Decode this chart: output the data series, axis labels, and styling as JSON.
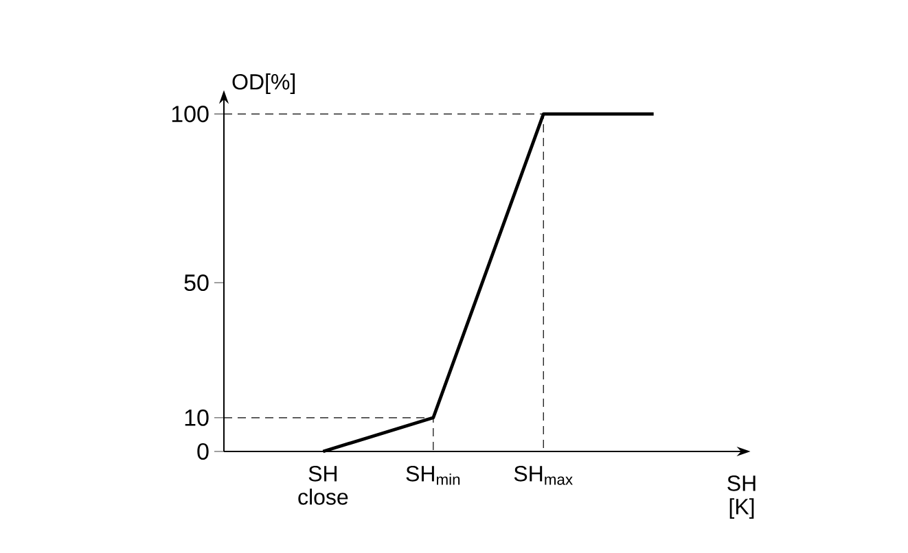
{
  "chart_data": {
    "type": "line",
    "ylabel": "OD[%]",
    "xlabel": "SH [K]",
    "categories": [
      "SH close",
      "SH$_{min}$",
      "SH$_{max}$",
      null
    ],
    "values": [
      0,
      10,
      100,
      100
    ],
    "color": "#000000",
    "ylim": [
      0,
      104.5
    ],
    "yticks": [
      0,
      10,
      50,
      100
    ],
    "ref_lines": [
      {
        "axis": "y",
        "value": 10,
        "line_style": "dashed"
      },
      {
        "axis": "y",
        "value": 100,
        "line_style": "dashed"
      }
    ],
    "grid": false,
    "marker": "none",
    "line_style": "solid"
  }
}
